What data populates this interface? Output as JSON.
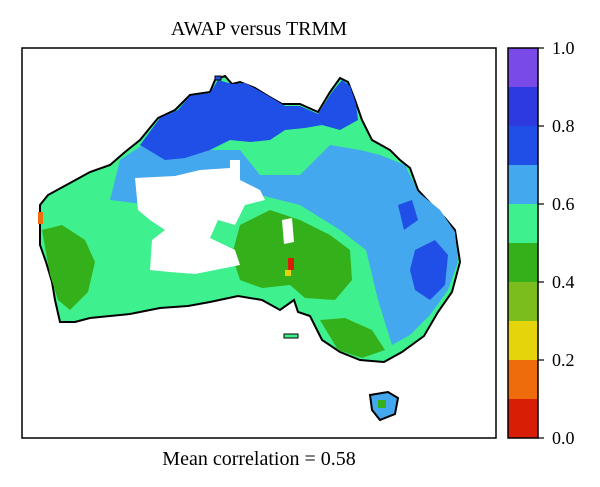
{
  "title": "AWAP versus TRMM",
  "caption": "Mean correlation = 0.58",
  "colorbar": {
    "ticks": [
      "0.0",
      "0.2",
      "0.4",
      "0.6",
      "0.8",
      "1.0"
    ],
    "levels": [
      {
        "from": 0.0,
        "to": 0.1,
        "color": "#d81e05"
      },
      {
        "from": 0.1,
        "to": 0.2,
        "color": "#ef6c0c"
      },
      {
        "from": 0.2,
        "to": 0.3,
        "color": "#e5d40c"
      },
      {
        "from": 0.3,
        "to": 0.4,
        "color": "#7cbd1e"
      },
      {
        "from": 0.4,
        "to": 0.5,
        "color": "#34b01a"
      },
      {
        "from": 0.5,
        "to": 0.6,
        "color": "#3ef08e"
      },
      {
        "from": 0.6,
        "to": 0.7,
        "color": "#44a8ef"
      },
      {
        "from": 0.7,
        "to": 0.8,
        "color": "#1f4fe6"
      },
      {
        "from": 0.8,
        "to": 0.9,
        "color": "#2d3ae0"
      },
      {
        "from": 0.9,
        "to": 1.0,
        "color": "#7a4ae8"
      }
    ]
  }
}
